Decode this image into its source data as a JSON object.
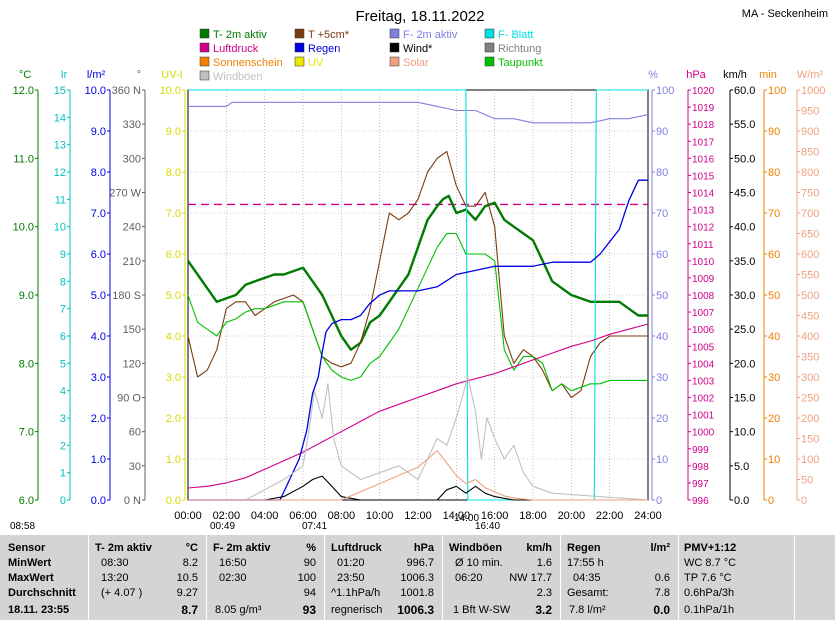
{
  "title": "Freitag, 18.11.2022",
  "station": "MA - Seckenheim",
  "legend": [
    {
      "label": "T- 2m aktiv",
      "color": "#007a00"
    },
    {
      "label": "T +5cm*",
      "color": "#7a3a10"
    },
    {
      "label": "F- 2m aktiv",
      "color": "#8080e0"
    },
    {
      "label": "F- Blatt",
      "color": "#00e0e0"
    },
    {
      "label": "Luftdruck",
      "color": "#d0008a"
    },
    {
      "label": "Regen",
      "color": "#0000e0"
    },
    {
      "label": "Wind*",
      "color": "#000000"
    },
    {
      "label": "Richtung",
      "color": "#808080"
    },
    {
      "label": "Sonnenschein",
      "color": "#f08000"
    },
    {
      "label": "UV",
      "color": "#e8e800"
    },
    {
      "label": "Solar",
      "color": "#f0a080"
    },
    {
      "label": "Taupunkt",
      "color": "#00c000"
    },
    {
      "label": "Windböen",
      "color": "#c0c0c0"
    }
  ],
  "chart_data": {
    "type": "line",
    "x_range": [
      0,
      24
    ],
    "x_ticks": [
      "00:00",
      "02:00",
      "04:00",
      "06:00",
      "08:00",
      "10:00",
      "12:00",
      "14:00",
      "16:00",
      "18:00",
      "20:00",
      "22:00",
      "24:00"
    ],
    "axes": {
      "temp": {
        "unit": "°C",
        "color": "#007a00",
        "ticks": [
          "12.0",
          "11.0",
          "10.0",
          "9.0",
          "8.0",
          "7.0",
          "6.0"
        ],
        "range": [
          6,
          12
        ]
      },
      "ir": {
        "unit": "Ir",
        "color": "#00c0c0",
        "ticks": [
          "15",
          "14",
          "13",
          "12",
          "11",
          "10",
          "9",
          "8",
          "7",
          "6",
          "5",
          "4",
          "3",
          "2",
          "1",
          "0"
        ],
        "range": [
          0,
          15
        ]
      },
      "rain": {
        "unit": "l/m²",
        "color": "#0000e0",
        "ticks": [
          "10.0",
          "9.0",
          "8.0",
          "7.0",
          "6.0",
          "5.0",
          "4.0",
          "3.0",
          "2.0",
          "1.0",
          "0.0"
        ],
        "range": [
          0,
          10
        ]
      },
      "dir": {
        "unit": "°",
        "color": "#606060",
        "ticks": [
          "360 N",
          "330",
          "300",
          "270 W",
          "240",
          "210",
          "180 S",
          "150",
          "120",
          "90 O",
          "60",
          "30",
          "0 N"
        ],
        "range": [
          0,
          360
        ]
      },
      "uv": {
        "unit": "UV-I",
        "color": "#d8d800",
        "ticks": [
          "10.0",
          "9.0",
          "8.0",
          "7.0",
          "6.0",
          "5.0",
          "4.0",
          "3.0",
          "2.0",
          "1.0",
          "0.0"
        ],
        "range": [
          0,
          10
        ]
      },
      "hum": {
        "unit": "%",
        "color": "#8080e0",
        "ticks": [
          "100",
          "90",
          "80",
          "70",
          "60",
          "50",
          "40",
          "30",
          "20",
          "10",
          "0"
        ],
        "range": [
          0,
          100
        ]
      },
      "press": {
        "unit": "hPa",
        "color": "#d0008a",
        "ticks": [
          "1020",
          "1019",
          "1018",
          "1017",
          "1016",
          "1015",
          "1014",
          "1013",
          "1012",
          "1011",
          "1010",
          "1009",
          "1008",
          "1007",
          "1006",
          "1005",
          "1004",
          "1003",
          "1002",
          "1001",
          "1000",
          "999",
          "998",
          "997",
          "996"
        ],
        "range": [
          996,
          1020
        ]
      },
      "wind": {
        "unit": "km/h",
        "color": "#000000",
        "ticks": [
          "60.0",
          "55.0",
          "50.0",
          "45.0",
          "40.0",
          "35.0",
          "30.0",
          "25.0",
          "20.0",
          "15.0",
          "10.0",
          "5.0",
          "0.0"
        ],
        "range": [
          0,
          60
        ]
      },
      "min": {
        "unit": "min",
        "color": "#f08000",
        "ticks": [
          "100",
          "90",
          "80",
          "70",
          "60",
          "50",
          "40",
          "30",
          "20",
          "10",
          "0"
        ],
        "range": [
          0,
          100
        ]
      },
      "solar": {
        "unit": "W/m²",
        "color": "#f0a080",
        "ticks": [
          "1000",
          "950",
          "900",
          "850",
          "800",
          "750",
          "700",
          "650",
          "600",
          "550",
          "500",
          "450",
          "400",
          "350",
          "300",
          "250",
          "200",
          "150",
          "100",
          "50",
          "0"
        ],
        "range": [
          0,
          1000
        ]
      }
    },
    "series": [
      {
        "name": "T- 2m aktiv",
        "axis": "temp",
        "color": "#007a00",
        "x": [
          0,
          0.5,
          1,
          1.5,
          2,
          2.5,
          3,
          3.5,
          4,
          4.5,
          5,
          5.5,
          6,
          6.5,
          7,
          7.5,
          8,
          8.5,
          9,
          9.5,
          10,
          10.5,
          11,
          11.5,
          12,
          12.5,
          13,
          13.3,
          13.6,
          14,
          14.5,
          15,
          15.5,
          16,
          16.5,
          17,
          17.5,
          18,
          18.5,
          19,
          19.5,
          20,
          20.5,
          21,
          21.5,
          22,
          22.5,
          23,
          23.5,
          24
        ],
        "y": [
          9.5,
          9.3,
          9.1,
          8.9,
          8.95,
          9.0,
          9.15,
          9.2,
          9.25,
          9.3,
          9.3,
          9.35,
          9.4,
          9.2,
          9.0,
          8.7,
          8.4,
          8.2,
          8.3,
          8.6,
          8.7,
          8.9,
          9.1,
          9.3,
          9.7,
          10.1,
          10.3,
          10.4,
          10.45,
          10.2,
          10.25,
          10.1,
          10.3,
          10.35,
          10.1,
          10.0,
          9.9,
          9.8,
          9.5,
          9.2,
          9.1,
          9.0,
          8.95,
          8.9,
          8.9,
          8.9,
          8.9,
          8.8,
          8.7,
          8.7
        ]
      },
      {
        "name": "T +5cm*",
        "axis": "temp",
        "color": "#7a3a10",
        "x": [
          0,
          0.5,
          1,
          1.5,
          2,
          2.5,
          3,
          3.5,
          4,
          4.5,
          5,
          5.5,
          6,
          6.5,
          7,
          7.5,
          8,
          8.5,
          9,
          9.5,
          10,
          10.5,
          11,
          11.5,
          12,
          12.5,
          13,
          13.5,
          14,
          14.5,
          15,
          15.5,
          16,
          16.5,
          17,
          17.5,
          18,
          18.5,
          19,
          19.5,
          20,
          20.5,
          21,
          21.5,
          22,
          22.5,
          23,
          23.5,
          24
        ],
        "y": [
          8.4,
          7.8,
          7.9,
          8.2,
          8.8,
          8.9,
          8.9,
          8.7,
          8.8,
          8.9,
          8.95,
          9.0,
          8.9,
          8.5,
          8.1,
          8.0,
          7.95,
          8.0,
          8.3,
          8.8,
          9.5,
          10.2,
          10.1,
          10.2,
          10.4,
          10.8,
          11.0,
          11.1,
          10.6,
          10.3,
          10.3,
          10.5,
          10.0,
          8.4,
          8.0,
          8.2,
          8.1,
          7.9,
          7.6,
          7.7,
          7.5,
          7.6,
          8.1,
          8.3,
          8.4,
          8.4,
          8.4,
          8.4,
          8.4
        ]
      },
      {
        "name": "Taupunkt",
        "axis": "temp",
        "color": "#00c000",
        "x": [
          0,
          0.5,
          1,
          1.5,
          2,
          2.5,
          3,
          3.5,
          4,
          4.5,
          5,
          5.5,
          6,
          6.5,
          7,
          7.5,
          8,
          8.5,
          9,
          9.5,
          10,
          10.5,
          11,
          11.5,
          12,
          12.5,
          13,
          13.5,
          14,
          14.5,
          15,
          15.5,
          16,
          16.5,
          17,
          17.5,
          18,
          18.5,
          19,
          19.5,
          20,
          20.5,
          21,
          21.5,
          22,
          22.5,
          23,
          23.5,
          24
        ],
        "y": [
          9.0,
          8.6,
          8.5,
          8.4,
          8.6,
          8.65,
          8.75,
          8.8,
          8.8,
          8.85,
          8.9,
          8.9,
          8.9,
          8.5,
          8.1,
          7.9,
          7.8,
          7.75,
          7.8,
          8.0,
          8.1,
          8.3,
          8.5,
          8.8,
          9.1,
          9.4,
          9.7,
          9.9,
          9.9,
          9.6,
          9.6,
          9.6,
          9.5,
          8.2,
          7.9,
          8.1,
          8.1,
          8.0,
          7.6,
          7.7,
          7.6,
          7.65,
          7.7,
          7.7,
          7.75,
          7.75,
          7.75,
          7.75,
          7.75
        ]
      },
      {
        "name": "F- 2m aktiv",
        "axis": "hum",
        "color": "#8080e0",
        "x": [
          0,
          1,
          2,
          2.3,
          3,
          4,
          5,
          6,
          7,
          8,
          9,
          10,
          11,
          12,
          13,
          14,
          15,
          16,
          17,
          18,
          19,
          20,
          21,
          22,
          23,
          24
        ],
        "y": [
          96,
          96,
          96,
          97,
          97,
          97,
          97,
          97,
          97,
          97,
          97,
          97,
          97,
          97,
          96,
          95,
          95,
          93,
          93,
          92,
          92,
          92,
          92,
          93,
          93,
          94
        ]
      },
      {
        "name": "F- Blatt",
        "axis": "hum",
        "color": "#00e0e0",
        "x": [
          0,
          14.5,
          14.6,
          14.7,
          15,
          21.2,
          21.3,
          21.5,
          24
        ],
        "y": [
          100,
          100,
          0,
          0,
          0,
          0,
          100,
          100,
          100
        ]
      },
      {
        "name": "Luftdruck",
        "axis": "press",
        "color": "#d0008a",
        "x": [
          0,
          1,
          2,
          3,
          4,
          5,
          6,
          7,
          8,
          9,
          10,
          11,
          12,
          13,
          14,
          15,
          16,
          17,
          18,
          19,
          20,
          21,
          22,
          23,
          24
        ],
        "y": [
          996.7,
          996.8,
          997.0,
          997.3,
          997.8,
          998.3,
          998.8,
          999.4,
          1000.0,
          1000.6,
          1001.2,
          1001.6,
          1002.0,
          1002.4,
          1002.8,
          1003.1,
          1003.4,
          1003.8,
          1004.2,
          1004.6,
          1005.0,
          1005.3,
          1005.7,
          1006.0,
          1006.3
        ]
      },
      {
        "name": "Regen",
        "axis": "rain",
        "color": "#0000e0",
        "x": [
          0,
          4.8,
          5.2,
          5.8,
          6.2,
          6.5,
          6.8,
          7.0,
          7.2,
          7.5,
          8.0,
          8.5,
          9.0,
          9.5,
          10.0,
          10.5,
          11.0,
          12.0,
          13.0,
          14.0,
          15.0,
          16.0,
          17.0,
          18.0,
          19.0,
          20.0,
          21.0,
          21.5,
          22.0,
          22.5,
          23.0,
          23.5,
          24
        ],
        "y": [
          0,
          0,
          0.4,
          1.0,
          1.7,
          2.6,
          3.0,
          3.6,
          4.1,
          4.3,
          4.4,
          4.4,
          4.5,
          4.8,
          5.0,
          5.1,
          5.1,
          5.1,
          5.2,
          5.5,
          5.6,
          5.7,
          5.7,
          5.7,
          5.8,
          5.8,
          5.8,
          6.0,
          6.3,
          6.6,
          7.3,
          7.8,
          7.8
        ]
      },
      {
        "name": "Wind*",
        "axis": "wind",
        "color": "#000000",
        "x": [
          0,
          4,
          5,
          6,
          6.5,
          7,
          7.5,
          8,
          9,
          13,
          13.5,
          14,
          14.5,
          15,
          15.5,
          16,
          17,
          24
        ],
        "y": [
          0,
          0,
          0.5,
          2,
          3,
          3.5,
          2,
          0.5,
          0,
          0,
          1.5,
          2,
          1,
          2,
          1,
          0.5,
          0,
          0
        ]
      },
      {
        "name": "Windböen",
        "axis": "wind",
        "color": "#c0c0c0",
        "x": [
          0,
          3,
          5,
          6,
          6.3,
          6.6,
          7,
          7.3,
          7.6,
          8,
          9,
          10,
          11,
          12,
          12.5,
          13,
          13.5,
          14,
          14.3,
          14.6,
          15,
          15.3,
          15.6,
          16,
          16.5,
          17,
          17.5,
          18,
          19,
          24
        ],
        "y": [
          0,
          0,
          3,
          5,
          10,
          16,
          12,
          17,
          9,
          5,
          3,
          4,
          5,
          3,
          6,
          9,
          8,
          12,
          15,
          18,
          13,
          6,
          12,
          9,
          6,
          8,
          4,
          2,
          1,
          0
        ]
      },
      {
        "name": "Solar",
        "axis": "solar",
        "color": "#f0a080",
        "x": [
          0,
          8,
          9,
          10,
          11,
          12,
          12.5,
          13,
          13.5,
          14,
          14.5,
          15,
          15.5,
          16,
          16.5,
          17,
          18,
          24
        ],
        "y": [
          0,
          0,
          20,
          40,
          60,
          80,
          100,
          120,
          90,
          60,
          40,
          50,
          30,
          20,
          10,
          5,
          0,
          0
        ]
      }
    ],
    "reference_line": {
      "name": "Luftdruck-Mittel",
      "axis": "press",
      "value": 1013.3,
      "color": "#d0008a"
    }
  },
  "table": {
    "headers": [
      {
        "name": "Sensor",
        "unit": ""
      },
      {
        "name": "T- 2m aktiv",
        "unit": "°C"
      },
      {
        "name": "F- 2m aktiv",
        "unit": "%"
      },
      {
        "name": "Luftdruck",
        "unit": "hPa"
      },
      {
        "name": "Windböen",
        "unit": "km/h"
      },
      {
        "name": "Regen",
        "unit": "l/m²"
      },
      {
        "name": "PMV+1:12",
        "unit": ""
      }
    ],
    "row_labels": [
      "MinWert",
      "MaxWert",
      "Durchschnitt",
      "18.11.  23:55"
    ],
    "temp": [
      [
        "08:30",
        "8.2"
      ],
      [
        "13:20",
        "10.5"
      ],
      [
        "(+ 4.07 )",
        "9.27"
      ],
      [
        "",
        "8.7"
      ]
    ],
    "hum": [
      [
        "16:50",
        "90"
      ],
      [
        "02:30",
        "100"
      ],
      [
        "",
        "94"
      ],
      [
        "8.05 g/m³",
        "93"
      ]
    ],
    "press": [
      [
        "01:20",
        "996.7"
      ],
      [
        "23:50",
        "1006.3"
      ],
      [
        "^1.1hPa/h",
        "1001.8"
      ],
      [
        "regnerisch",
        "1006.3"
      ]
    ],
    "gust": [
      [
        "Ø 10 min.",
        "1.6"
      ],
      [
        "06:20",
        "NW 17.7"
      ],
      [
        "",
        "2.3"
      ],
      [
        "1 Bft W-SW",
        "3.2"
      ]
    ],
    "rain": [
      [
        "17:55 h",
        ""
      ],
      [
        "04:35",
        "0.6"
      ],
      [
        "Gesamt:",
        "7.8"
      ],
      [
        "7.8 l/m²",
        "0.0"
      ]
    ],
    "pmv": [
      "WC 8.7 °C",
      "TP 7.6 °C",
      "0.6hPa/3h",
      "0.1hPa/1h"
    ]
  },
  "time_marks": [
    "08:58",
    "00:49",
    "07:41",
    "14:00",
    "16:40"
  ]
}
